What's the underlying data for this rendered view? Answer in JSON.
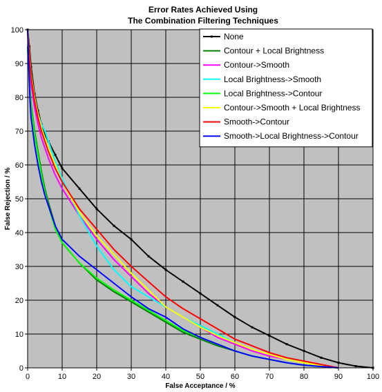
{
  "chart_data": {
    "type": "line",
    "title": [
      "Error Rates Achieved Using",
      "The Combination Filtering Techniques"
    ],
    "xlabel": "False Acceptance / %",
    "ylabel": "False Rejection / %",
    "xlim": [
      0,
      100
    ],
    "ylim": [
      0,
      100
    ],
    "xticks": [
      0,
      10,
      20,
      30,
      40,
      50,
      60,
      70,
      80,
      90,
      100
    ],
    "yticks": [
      0,
      10,
      20,
      30,
      40,
      50,
      60,
      70,
      80,
      90,
      100
    ],
    "grid": true,
    "plot_background": "#c0c0c0",
    "legend_position": "top-right",
    "series": [
      {
        "name": "None",
        "color": "#000000",
        "marker": "dot",
        "x": [
          0,
          0.5,
          1,
          2,
          3,
          4,
          5,
          6,
          8,
          10,
          15,
          20,
          25,
          30,
          35,
          40,
          45,
          50,
          55,
          60,
          65,
          70,
          75,
          80,
          85,
          90,
          95,
          100
        ],
        "y": [
          100,
          95,
          89,
          81,
          76,
          72,
          69,
          67,
          63,
          59,
          53,
          47,
          42,
          38,
          33,
          29,
          25.5,
          22,
          18.5,
          15,
          12,
          9.5,
          7,
          5,
          3,
          1.5,
          0.5,
          0
        ]
      },
      {
        "name": "Contour + Local Brightness",
        "color": "#008000",
        "x": [
          0,
          0.3,
          0.7,
          1,
          2,
          3,
          4,
          5,
          6,
          8,
          10,
          15,
          20,
          25,
          30,
          35,
          40,
          45,
          50,
          55,
          60,
          65,
          70,
          75,
          80,
          85,
          90
        ],
        "y": [
          95,
          90,
          82,
          78,
          70,
          64,
          58,
          53,
          49,
          42,
          37,
          31,
          26,
          22.5,
          19.5,
          16.5,
          13.5,
          10.5,
          8.5,
          6.5,
          5,
          3.5,
          2.5,
          1.5,
          0.8,
          0.4,
          0
        ]
      },
      {
        "name": "Contour->Smooth",
        "color": "#ff00ff",
        "x": [
          0,
          0.5,
          1,
          2,
          3,
          4,
          5,
          6,
          8,
          10,
          15,
          20,
          25,
          30,
          35,
          40,
          45,
          50,
          55,
          60,
          65,
          70,
          75,
          80,
          85,
          90
        ],
        "y": [
          100,
          90,
          84,
          77,
          72,
          68,
          65,
          62,
          57,
          53,
          45,
          38,
          32,
          27,
          22,
          18,
          15,
          12,
          9,
          7,
          5,
          3.5,
          2.5,
          1.5,
          0.7,
          0
        ]
      },
      {
        "name": "Local Brightness->Smooth",
        "color": "#00ffff",
        "x": [
          0,
          0.5,
          1,
          2,
          3,
          4,
          5,
          6,
          8,
          10,
          15,
          20,
          25,
          30,
          35,
          40,
          45,
          50,
          55,
          60,
          65,
          70,
          75,
          80,
          85,
          90
        ],
        "y": [
          100,
          92,
          86,
          80,
          75,
          72,
          70,
          67,
          61,
          56,
          45,
          36,
          29,
          24,
          21,
          18,
          15,
          12.5,
          10,
          7.5,
          5.5,
          4,
          2.5,
          1.5,
          0.7,
          0
        ]
      },
      {
        "name": "Local Brightness->Contour",
        "color": "#00ff00",
        "x": [
          0,
          0.3,
          0.7,
          1,
          2,
          3,
          4,
          5,
          6,
          8,
          10,
          15,
          20,
          25,
          30,
          35,
          40,
          45,
          50,
          55,
          60,
          65,
          70,
          75,
          80,
          85,
          90
        ],
        "y": [
          94,
          89,
          82,
          77,
          69,
          63,
          57,
          52,
          48,
          41,
          37,
          31,
          26.5,
          23,
          20,
          17,
          14,
          11,
          9,
          7,
          5,
          3.5,
          2.5,
          1.5,
          0.8,
          0.4,
          0
        ]
      },
      {
        "name": "Contour->Smooth + Local Brightness",
        "color": "#ffff00",
        "x": [
          0,
          0.5,
          1,
          2,
          3,
          4,
          5,
          6,
          8,
          10,
          15,
          20,
          25,
          30,
          35,
          40,
          45,
          50,
          55,
          60,
          65,
          70,
          75,
          80,
          85,
          90
        ],
        "y": [
          100,
          93,
          87,
          80,
          75,
          71,
          68,
          65,
          60,
          55,
          46,
          39,
          33.5,
          28,
          23,
          18,
          15,
          12,
          9.5,
          7.5,
          5.5,
          4,
          2.5,
          1.5,
          0.7,
          0
        ]
      },
      {
        "name": "Smooth->Contour",
        "color": "#ff0000",
        "x": [
          0,
          0.5,
          1,
          2,
          3,
          4,
          5,
          6,
          8,
          10,
          15,
          20,
          25,
          30,
          35,
          40,
          45,
          50,
          55,
          60,
          65,
          70,
          75,
          80,
          85,
          90
        ],
        "y": [
          100,
          92,
          86,
          79,
          74,
          70,
          67,
          64,
          59,
          55,
          47,
          41,
          35,
          30,
          25.5,
          21,
          17.5,
          14.5,
          11.5,
          8.5,
          6.5,
          4.5,
          3,
          2,
          1,
          0
        ]
      },
      {
        "name": "Smooth->Local Brightness->Contour",
        "color": "#0000ff",
        "x": [
          0,
          0.3,
          0.7,
          1,
          2,
          3,
          4,
          5,
          6,
          8,
          10,
          15,
          20,
          25,
          30,
          35,
          40,
          45,
          50,
          55,
          60,
          65,
          70,
          75,
          80,
          85,
          90
        ],
        "y": [
          100,
          90,
          79,
          74,
          66,
          60,
          55,
          51,
          48,
          42,
          38,
          33,
          29,
          25,
          21,
          17.5,
          15,
          11.5,
          9,
          7,
          5,
          3.5,
          2.5,
          1.5,
          0.8,
          0.4,
          0
        ]
      }
    ]
  }
}
